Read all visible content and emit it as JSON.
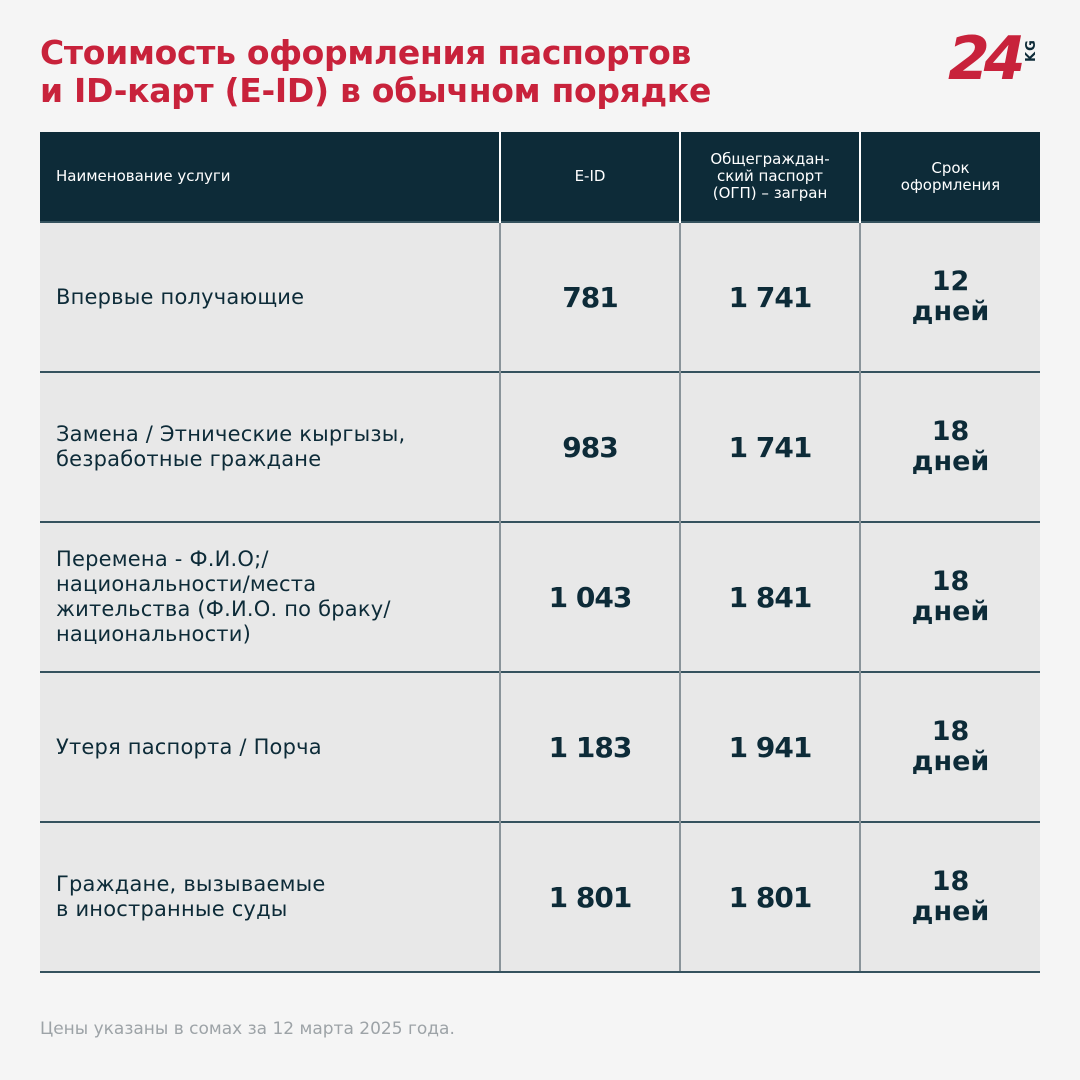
{
  "title": {
    "line1": "Стоимость оформления паспортов",
    "line2": "и ID-карт (E-ID) в обычном порядке"
  },
  "logo": {
    "number": "24",
    "suffix": "KG"
  },
  "table": {
    "headers": [
      "Наименование услуги",
      "E-ID",
      "Общеграждан-\nский паспорт\n(ОГП) – загран",
      "Срок\nоформления"
    ],
    "rows": [
      {
        "service": "Впервые получающие",
        "eid": "781",
        "ogp": "1 741",
        "term": "12\nдней"
      },
      {
        "service": "Замена / Этнические кыргызы,\nбезработные граждане",
        "eid": "983",
        "ogp": "1 741",
        "term": "18\nдней"
      },
      {
        "service": "Перемена - Ф.И.О;/\nнациональности/места\nжительства (Ф.И.О. по браку/\nнациональности)",
        "eid": "1 043",
        "ogp": "1 841",
        "term": "18\nдней"
      },
      {
        "service": "Утеря паспорта / Порча",
        "eid": "1 183",
        "ogp": "1 941",
        "term": "18\nдней"
      },
      {
        "service": "Граждане, вызываемые\nв иностранные суды",
        "eid": "1 801",
        "ogp": "1 801",
        "term": "18\nдней"
      }
    ]
  },
  "footnote": "Цены указаны в сомах за 12 марта 2025 года.",
  "colors": {
    "accent": "#c8223b",
    "header_bg": "#0d2b38",
    "row_bg": "#e8e8e8",
    "page_bg": "#f5f5f5"
  }
}
